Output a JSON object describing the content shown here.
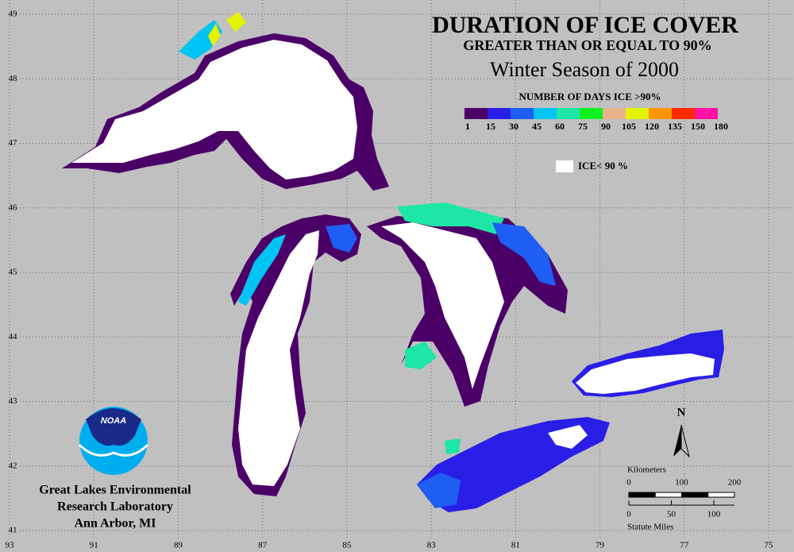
{
  "title": "DURATION OF ICE COVER",
  "subtitle": "GREATER THAN OR EQUAL TO 90%",
  "season": "Winter Season of 2000",
  "legend": {
    "title": "NUMBER OF DAYS ICE >90%",
    "breaks": [
      1,
      15,
      30,
      45,
      60,
      75,
      90,
      105,
      120,
      135,
      150,
      180
    ],
    "colors": [
      "#4b0068",
      "#2a1ee6",
      "#1e5ef2",
      "#00c4f4",
      "#1ee6a6",
      "#10f020",
      "#e8b28e",
      "#e2f400",
      "#ff9400",
      "#ff2a00",
      "#ff12a4"
    ],
    "ice_label": "ICE< 90 %"
  },
  "map": {
    "lon_lim": [
      93,
      75
    ],
    "lat_lim": [
      49,
      41
    ],
    "lon_ticks": [
      93,
      91,
      89,
      87,
      85,
      83,
      81,
      79,
      77,
      75
    ],
    "lat_ticks": [
      49,
      48,
      47,
      46,
      45,
      44,
      43,
      42,
      41
    ]
  },
  "north": "N",
  "scale": {
    "km_title": "Kilometers",
    "km_ticks": [
      0,
      100,
      200
    ],
    "mile_ticks": [
      0,
      50,
      100
    ],
    "mile_title": "Statute Miles"
  },
  "logo": "NOAA",
  "credit": [
    "Great Lakes Environmental",
    "Research Laboratory",
    "Ann Arbor, MI"
  ]
}
